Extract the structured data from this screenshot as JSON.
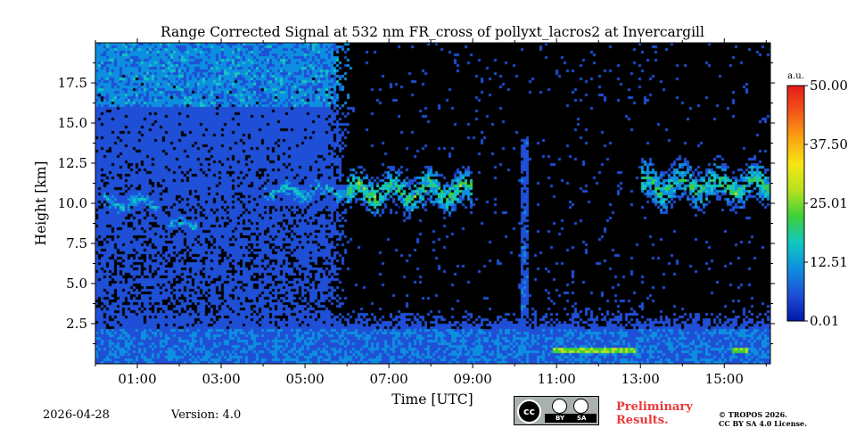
{
  "chart_data": {
    "type": "heatmap",
    "title": "Range Corrected Signal at 532 nm FR_cross of pollyxt_lacros2 at Invercargill",
    "xlabel": "Time [UTC]",
    "ylabel": "Height [km]",
    "xlim_hours": [
      0.0,
      16.1
    ],
    "ylim_km": [
      0.0,
      20.0
    ],
    "x_ticks": [
      {
        "hour": 1,
        "label": "01:00"
      },
      {
        "hour": 3,
        "label": "03:00"
      },
      {
        "hour": 5,
        "label": "05:00"
      },
      {
        "hour": 7,
        "label": "07:00"
      },
      {
        "hour": 9,
        "label": "09:00"
      },
      {
        "hour": 11,
        "label": "11:00"
      },
      {
        "hour": 13,
        "label": "13:00"
      },
      {
        "hour": 15,
        "label": "15:00"
      }
    ],
    "y_ticks": [
      {
        "km": 2.5,
        "label": "2.5"
      },
      {
        "km": 5.0,
        "label": "5.0"
      },
      {
        "km": 7.5,
        "label": "7.5"
      },
      {
        "km": 10.0,
        "label": "10.0"
      },
      {
        "km": 12.5,
        "label": "12.5"
      },
      {
        "km": 15.0,
        "label": "15.0"
      },
      {
        "km": 17.5,
        "label": "17.5"
      }
    ],
    "colorbar": {
      "unit": "a.u.",
      "min": 0.01,
      "max": 50.0,
      "ticks": [
        {
          "value": 0.01,
          "label": "0.01"
        },
        {
          "value": 12.51,
          "label": "12.51"
        },
        {
          "value": 25.01,
          "label": "25.01"
        },
        {
          "value": 37.5,
          "label": "37.50"
        },
        {
          "value": 50.0,
          "label": "50.00"
        }
      ],
      "colormap": [
        "#0018a8",
        "#1f4fd6",
        "#0d8fe0",
        "#12c7c0",
        "#3ecf3a",
        "#b7e21e",
        "#f6e614",
        "#f9a313",
        "#f5561a",
        "#e41a1c"
      ]
    },
    "features": [
      {
        "name": "boundary-layer",
        "t_start": 0.0,
        "t_end": 16.1,
        "top_km": 2.2,
        "level": 2.2
      },
      {
        "name": "night-noise",
        "t_start": 0.0,
        "t_end": 6.1,
        "level": 1.0
      },
      {
        "name": "cirrus-1",
        "t_start": 0.2,
        "t_end": 1.5,
        "h_low_km": 9.2,
        "h_high_km": 10.8,
        "peak": 2.6
      },
      {
        "name": "cirrus-2",
        "t_start": 1.7,
        "t_end": 2.4,
        "h_low_km": 8.2,
        "h_high_km": 9.2,
        "peak": 2.8
      },
      {
        "name": "cirrus-3",
        "t_start": 4.0,
        "t_end": 6.0,
        "h_low_km": 10.0,
        "h_high_km": 11.5,
        "peak": 3.0
      },
      {
        "name": "cirrus-4",
        "t_start": 6.0,
        "t_end": 9.0,
        "h_low_km": 9.5,
        "h_high_km": 12.0,
        "peak": 4.2
      },
      {
        "name": "cirrus-5",
        "t_start": 13.0,
        "t_end": 16.1,
        "h_low_km": 9.8,
        "h_high_km": 12.5,
        "peak": 4.0
      },
      {
        "name": "low-cloud-1",
        "t_start": 10.9,
        "t_end": 12.9,
        "h_km": 0.8,
        "peak": 5.0
      },
      {
        "name": "low-cloud-2",
        "t_start": 15.2,
        "t_end": 15.6,
        "h_km": 0.8,
        "peak": 5.0
      },
      {
        "name": "rain-column",
        "t_start": 10.15,
        "t_end": 10.35,
        "level": 1.6
      }
    ]
  },
  "footer": {
    "date": "2026-04-28",
    "version": "Version: 4.0",
    "license_badge": {
      "cc": "cc",
      "by": "BY",
      "sa": "SA"
    },
    "preliminary_line1": "Preliminary",
    "preliminary_line2": "Results.",
    "copyright_line1": "© TROPOS 2026.",
    "copyright_line2": "CC BY SA 4.0 License."
  }
}
